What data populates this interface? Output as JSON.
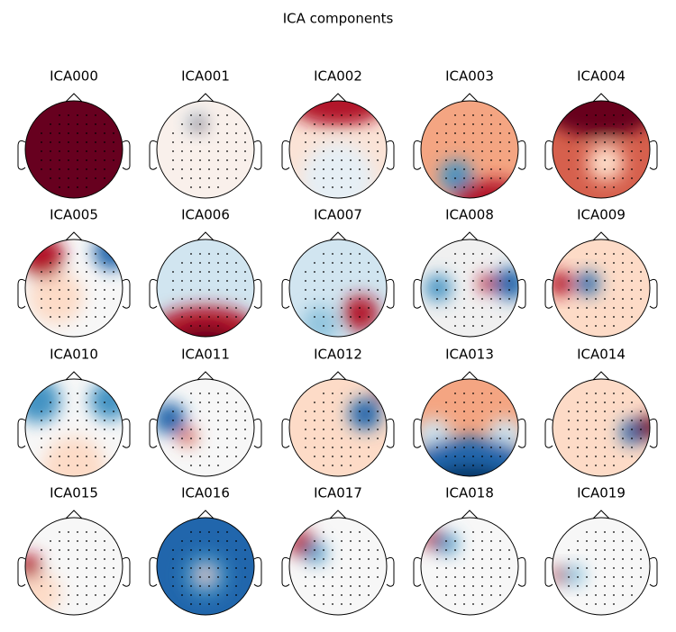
{
  "title": "ICA components",
  "components": [
    "ICA000",
    "ICA001",
    "ICA002",
    "ICA003",
    "ICA004",
    "ICA005",
    "ICA006",
    "ICA007",
    "ICA008",
    "ICA009",
    "ICA010",
    "ICA011",
    "ICA012",
    "ICA013",
    "ICA014",
    "ICA015",
    "ICA016",
    "ICA017",
    "ICA018",
    "ICA019"
  ]
}
